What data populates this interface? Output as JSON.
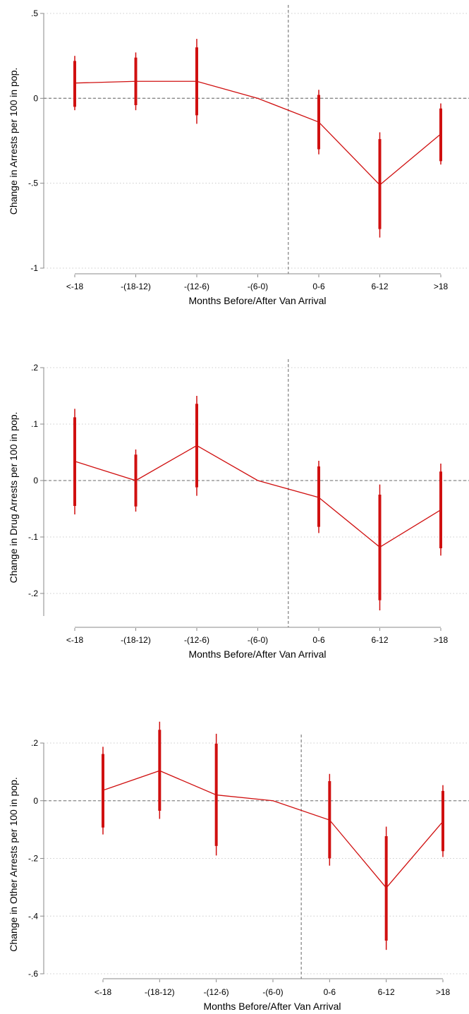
{
  "chart_data": [
    {
      "type": "line",
      "categories": [
        "<-18",
        "-(18-12)",
        "-(12-6)",
        "-(6-0)",
        "0-6",
        "6-12",
        ">18"
      ],
      "xlabel": "Months Before/After Van Arrival",
      "ylabel": "Change in Arrests per 100 in pop.",
      "ylim": [
        -1,
        0.5
      ],
      "yticks": [
        0.5,
        0,
        -0.5,
        -1
      ],
      "ytick_labels": [
        ".5",
        "0",
        "-.5",
        "-1"
      ],
      "series": [
        {
          "estimate": [
            0.09,
            0.1,
            0.1,
            0.0,
            -0.14,
            -0.51,
            -0.21
          ],
          "ci95_low": [
            -0.07,
            -0.07,
            -0.15,
            null,
            -0.33,
            -0.82,
            -0.39
          ],
          "ci95_high": [
            0.25,
            0.27,
            0.35,
            null,
            0.05,
            -0.2,
            -0.03
          ],
          "ci90_low": [
            -0.05,
            -0.04,
            -0.1,
            null,
            -0.3,
            -0.77,
            -0.37
          ],
          "ci90_high": [
            0.22,
            0.24,
            0.3,
            null,
            0.02,
            -0.24,
            -0.06
          ]
        }
      ],
      "reference_line_y": 0,
      "event_line_x": 4.5,
      "grid": true,
      "colors": {
        "series": "#d01010",
        "reference": "#888888",
        "grid": "#cccccc"
      }
    },
    {
      "type": "line",
      "categories": [
        "<-18",
        "-(18-12)",
        "-(12-6)",
        "-(6-0)",
        "0-6",
        "6-12",
        ">18"
      ],
      "xlabel": "Months Before/After Van Arrival",
      "ylabel": "Change in Drug Arrests per 100 in pop.",
      "ylim": [
        -0.24,
        0.2
      ],
      "yticks": [
        0.2,
        0.1,
        0,
        -0.1,
        -0.2
      ],
      "ytick_labels": [
        ".2",
        ".1",
        "0",
        "-.1",
        "-.2"
      ],
      "series": [
        {
          "estimate": [
            0.034,
            0.0,
            0.062,
            0.0,
            -0.03,
            -0.118,
            -0.052
          ],
          "ci95_low": [
            -0.06,
            -0.055,
            -0.027,
            null,
            -0.093,
            -0.23,
            -0.133
          ],
          "ci95_high": [
            0.127,
            0.055,
            0.15,
            null,
            0.035,
            -0.007,
            0.03
          ],
          "ci90_low": [
            -0.045,
            -0.046,
            -0.012,
            null,
            -0.082,
            -0.212,
            -0.12
          ],
          "ci90_high": [
            0.112,
            0.046,
            0.136,
            null,
            0.025,
            -0.025,
            0.016
          ]
        }
      ],
      "reference_line_y": 0,
      "event_line_x": 4.5,
      "grid": true,
      "colors": {
        "series": "#d01010",
        "reference": "#888888",
        "grid": "#cccccc"
      }
    },
    {
      "type": "line",
      "categories": [
        "<-18",
        "-(18-12)",
        "-(12-6)",
        "-(6-0)",
        "0-6",
        "6-12",
        ">18"
      ],
      "xlabel": "Months Before/After Van Arrival",
      "ylabel": "Change in Other Arrests per 100 in pop.",
      "ylim": [
        -0.6,
        0.2
      ],
      "yticks": [
        0.2,
        0,
        -0.2,
        -0.4,
        -0.6
      ],
      "ytick_labels": [
        ".2",
        "0",
        "-.2",
        "-.4",
        "-.6"
      ],
      "series": [
        {
          "estimate": [
            0.036,
            0.104,
            0.02,
            0.0,
            -0.067,
            -0.302,
            -0.072
          ],
          "ci95_low": [
            -0.117,
            -0.063,
            -0.19,
            null,
            -0.225,
            -0.517,
            -0.195
          ],
          "ci95_high": [
            0.187,
            0.274,
            0.232,
            null,
            0.093,
            -0.09,
            0.054
          ],
          "ci90_low": [
            -0.093,
            -0.035,
            -0.157,
            null,
            -0.2,
            -0.485,
            -0.175
          ],
          "ci90_high": [
            0.162,
            0.246,
            0.198,
            null,
            0.068,
            -0.123,
            0.034
          ]
        }
      ],
      "reference_line_y": 0,
      "event_line_x": 4.5,
      "grid": true,
      "colors": {
        "series": "#d01010",
        "reference": "#888888",
        "grid": "#cccccc"
      }
    }
  ]
}
